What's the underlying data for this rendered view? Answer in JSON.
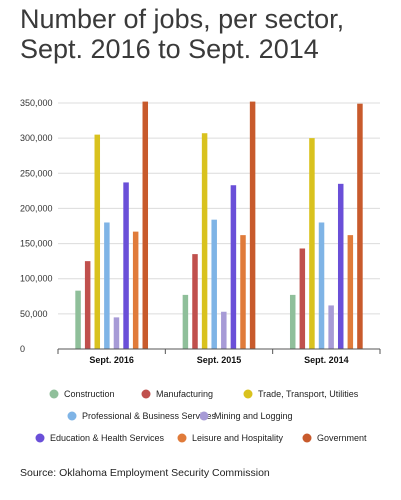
{
  "title": "Number of jobs, per sector, Sept. 2016 to Sept. 2014",
  "source": "Source: Oklahoma Employment Security Commission",
  "chart_data": {
    "type": "bar",
    "title": "Number of jobs, per sector, Sept. 2016 to Sept. 2014",
    "xlabel": "",
    "ylabel": "",
    "ylim": [
      0,
      350000
    ],
    "yticks": [
      0,
      50000,
      100000,
      150000,
      200000,
      250000,
      300000,
      350000
    ],
    "ytick_labels": [
      "0",
      "50,000",
      "100,000",
      "150,000",
      "200,000",
      "250,000",
      "300,000",
      "350,000"
    ],
    "grid": true,
    "legend_position": "bottom",
    "categories": [
      "Sept. 2016",
      "Sept. 2015",
      "Sept. 2014"
    ],
    "series": [
      {
        "name": "Construction",
        "color": "#8fbf9a",
        "values": [
          83000,
          77000,
          77000
        ]
      },
      {
        "name": "Manufacturing",
        "color": "#c0504d",
        "values": [
          125000,
          135000,
          143000
        ]
      },
      {
        "name": "Trade, Transport, Utilities",
        "color": "#d9c21e",
        "values": [
          305000,
          307000,
          300000
        ]
      },
      {
        "name": "Professional & Business Services",
        "color": "#7fb4e6",
        "values": [
          180000,
          184000,
          180000
        ]
      },
      {
        "name": "Mining and Logging",
        "color": "#a79bd6",
        "values": [
          45000,
          53000,
          62000
        ]
      },
      {
        "name": "Education & Health Services",
        "color": "#6a4fd8",
        "values": [
          237000,
          233000,
          235000
        ]
      },
      {
        "name": "Leisure and Hospitality",
        "color": "#e07b3a",
        "values": [
          167000,
          162000,
          162000
        ]
      },
      {
        "name": "Government",
        "color": "#c85a2c",
        "values": [
          352000,
          352000,
          349000
        ]
      }
    ]
  }
}
